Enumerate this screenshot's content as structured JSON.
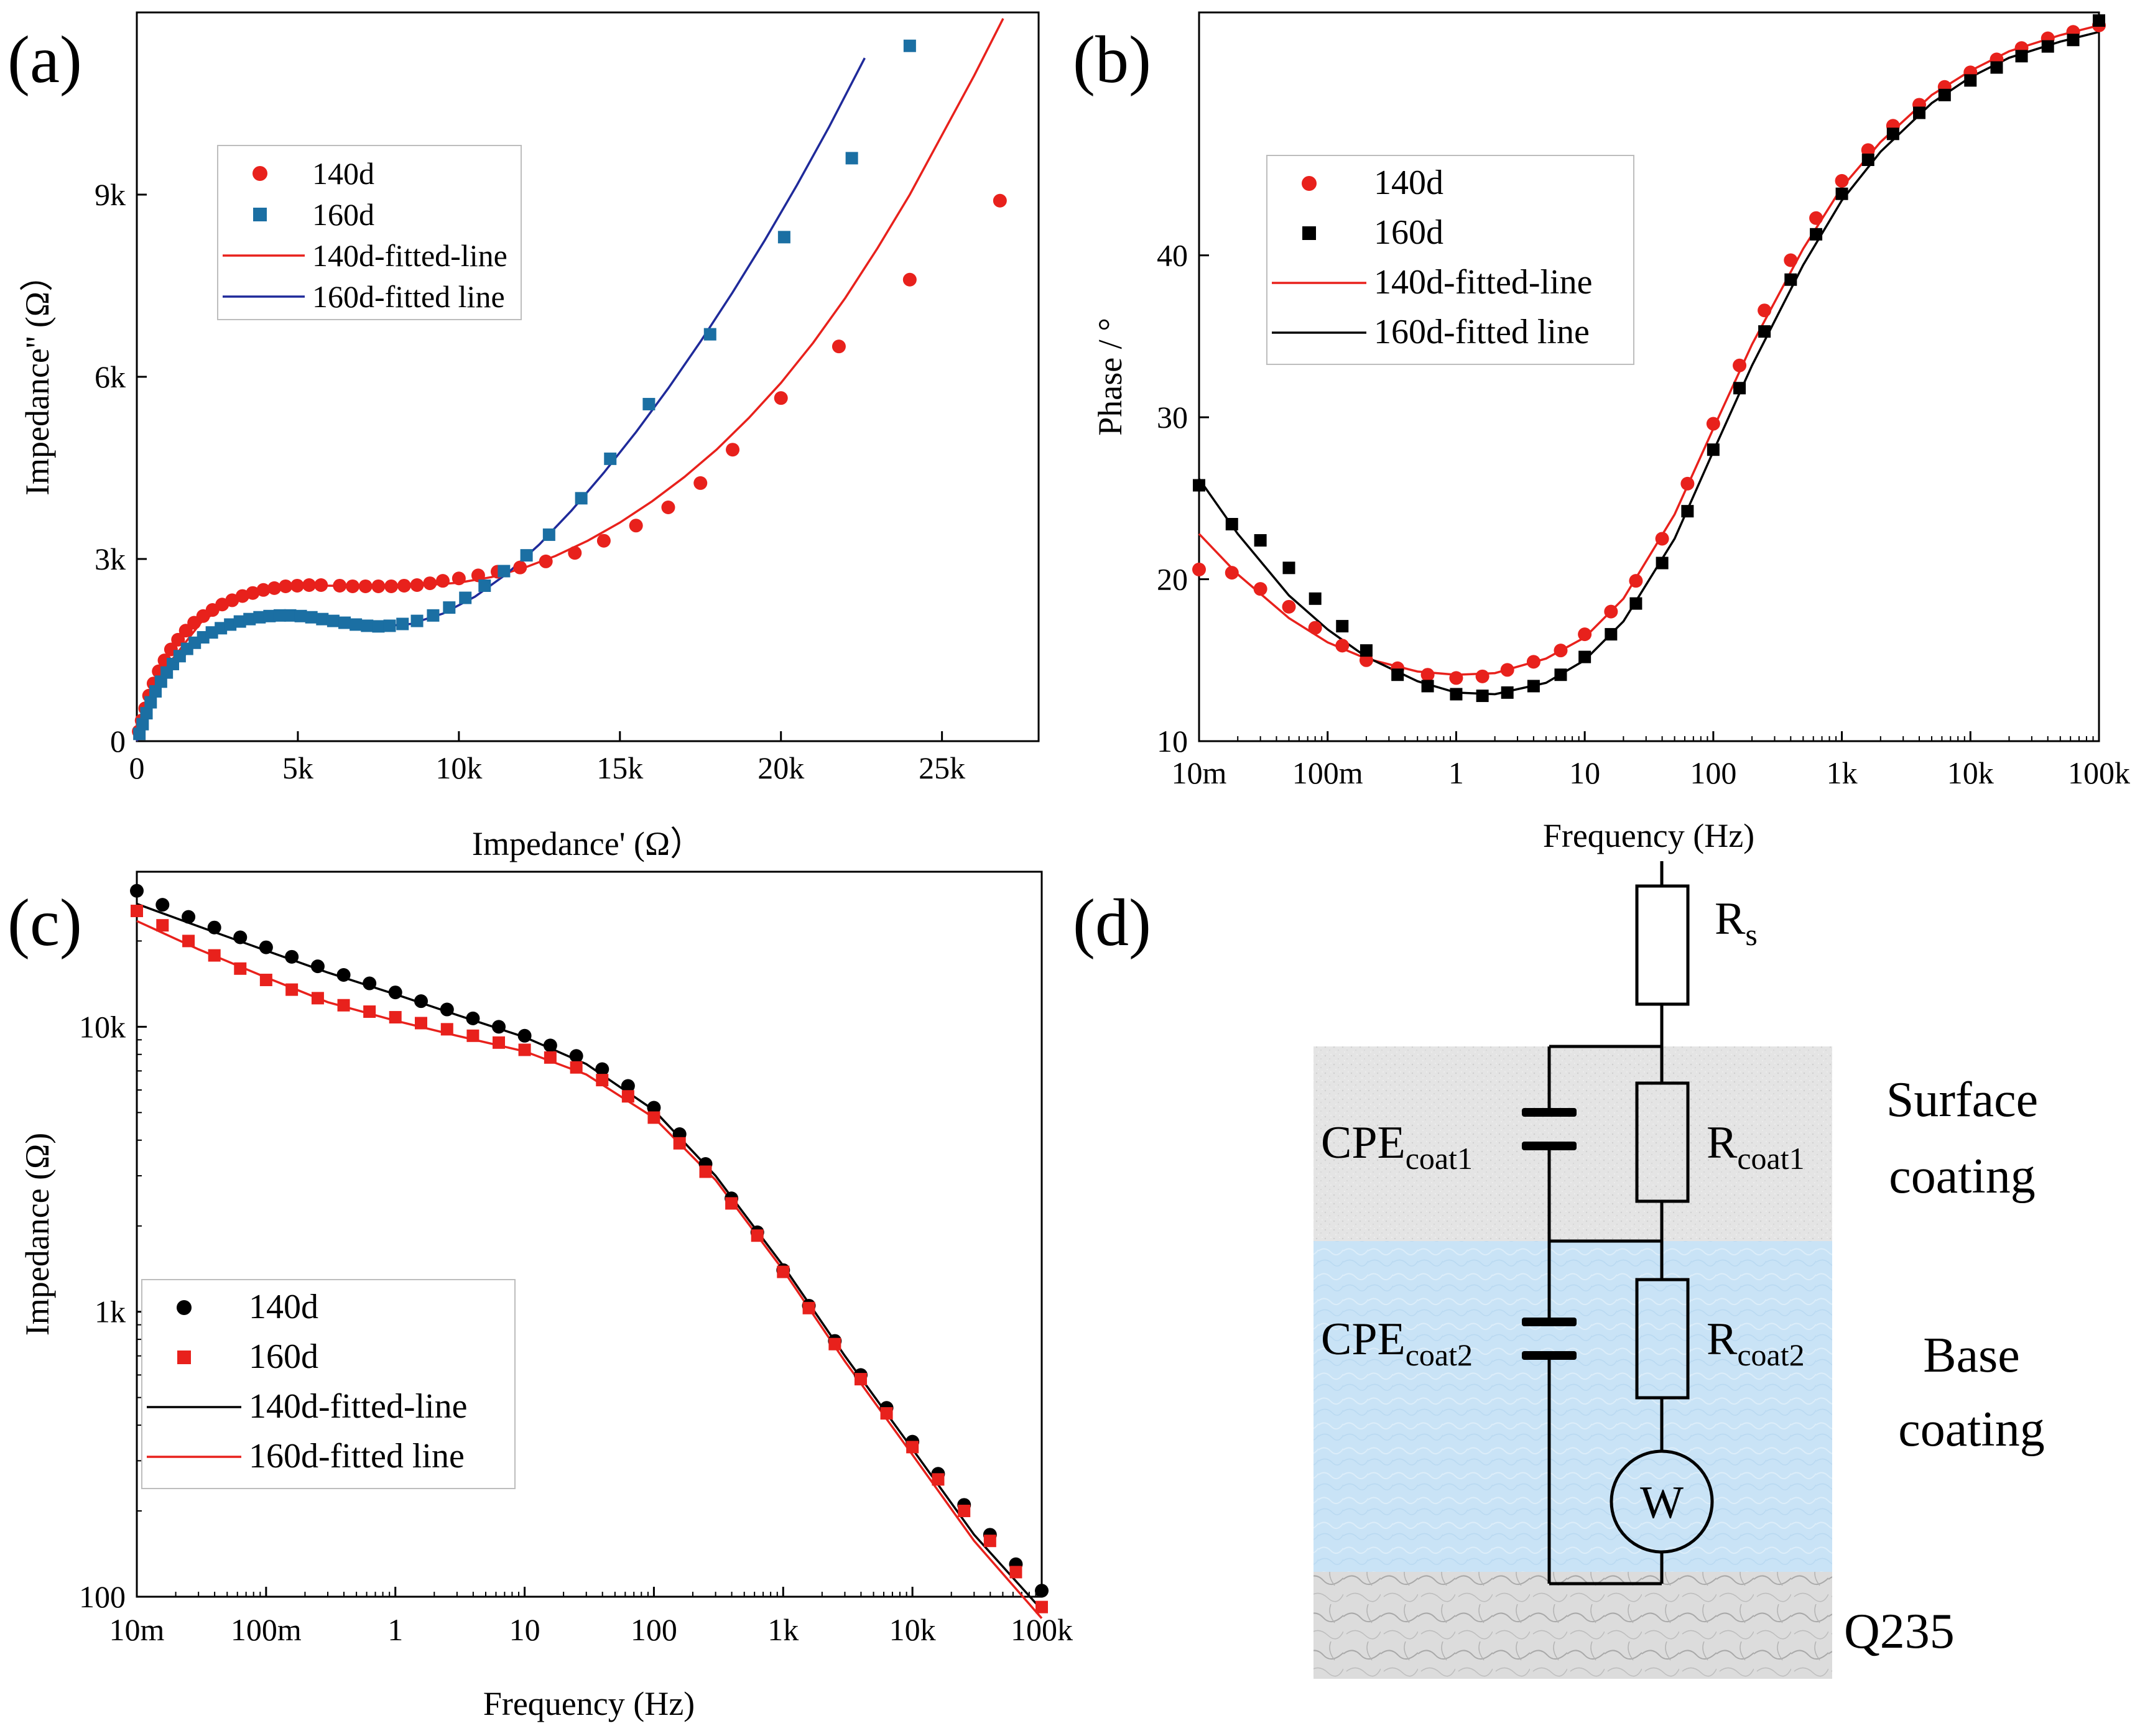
{
  "panels": {
    "a": "(a)",
    "b": "(b)",
    "c": "(c)",
    "d": "(d)"
  },
  "colors": {
    "red": "#e8211c",
    "teal": "#1b6fa3",
    "navy": "#1f2a9a",
    "black": "#000000"
  },
  "chart_data": [
    {
      "id": "a",
      "type": "scatter",
      "title": "",
      "xlabel": "Impedance' (Ω）",
      "ylabel": "Impedance'' (Ω）",
      "xlim": [
        0,
        28000
      ],
      "ylim": [
        0,
        12000
      ],
      "xticks": [
        0,
        5000,
        10000,
        15000,
        20000,
        25000
      ],
      "xtick_labels": [
        "0",
        "5k",
        "10k",
        "15k",
        "20k",
        "25k"
      ],
      "yticks": [
        0,
        3000,
        6000,
        9000
      ],
      "ytick_labels": [
        "0",
        "3k",
        "6k",
        "9k"
      ],
      "legend_position": "upper-left",
      "legend": [
        "140d",
        "160d",
        "140d-fitted-line",
        "160d-fitted line"
      ],
      "series": [
        {
          "name": "140d",
          "marker": "circle",
          "color": "#e8211c",
          "x": [
            60,
            150,
            260,
            380,
            520,
            680,
            860,
            1060,
            1280,
            1520,
            1780,
            2060,
            2350,
            2650,
            2960,
            3280,
            3600,
            3930,
            4270,
            4620,
            4980,
            5350,
            5720,
            6300,
            6700,
            7100,
            7500,
            7900,
            8300,
            8700,
            9100,
            9500,
            10000,
            10600,
            11200,
            11900,
            12700,
            13600,
            14500,
            15500,
            16500,
            17500,
            18500,
            20000,
            21800,
            24000,
            26800
          ],
          "y": [
            160,
            340,
            540,
            750,
            950,
            1150,
            1330,
            1510,
            1670,
            1820,
            1950,
            2060,
            2160,
            2250,
            2320,
            2390,
            2440,
            2490,
            2520,
            2550,
            2560,
            2570,
            2570,
            2560,
            2550,
            2550,
            2550,
            2550,
            2560,
            2570,
            2600,
            2640,
            2680,
            2730,
            2790,
            2860,
            2960,
            3100,
            3300,
            3550,
            3850,
            4250,
            4800,
            5650,
            6500,
            7600,
            8900
          ]
        },
        {
          "name": "160d",
          "marker": "square",
          "color": "#1b6fa3",
          "x": [
            80,
            180,
            300,
            430,
            580,
            750,
            930,
            1120,
            1330,
            1560,
            1800,
            2060,
            2330,
            2610,
            2900,
            3200,
            3500,
            3810,
            4120,
            4440,
            4760,
            5090,
            5420,
            5760,
            6100,
            6450,
            6800,
            7150,
            7500,
            7850,
            8250,
            8700,
            9200,
            9700,
            10200,
            10800,
            11400,
            12100,
            12800,
            13800,
            14700,
            15900,
            17800,
            20100,
            22200,
            24000
          ],
          "y": [
            120,
            280,
            460,
            640,
            820,
            980,
            1130,
            1270,
            1400,
            1520,
            1620,
            1710,
            1790,
            1860,
            1920,
            1970,
            2010,
            2040,
            2060,
            2070,
            2070,
            2060,
            2040,
            2010,
            1980,
            1950,
            1920,
            1900,
            1890,
            1900,
            1930,
            1980,
            2070,
            2200,
            2360,
            2560,
            2800,
            3060,
            3400,
            4000,
            4650,
            5550,
            6700,
            8300,
            9600,
            11450
          ]
        }
      ],
      "fits": [
        {
          "name": "140d-fitted-line",
          "color": "#e8211c",
          "x": [
            0,
            400,
            1000,
            2000,
            3000,
            4000,
            5000,
            6000,
            7000,
            8000,
            9000,
            10000,
            11000,
            12000,
            13000,
            14000,
            15000,
            16000,
            17000,
            18000,
            19000,
            20000,
            21000,
            22000,
            23000,
            24000,
            25000,
            26000,
            26900
          ],
          "y": [
            0,
            620,
            1280,
            1960,
            2330,
            2500,
            2560,
            2560,
            2550,
            2550,
            2570,
            2610,
            2700,
            2850,
            3050,
            3300,
            3600,
            3950,
            4350,
            4800,
            5320,
            5900,
            6560,
            7300,
            8120,
            9000,
            9980,
            10960,
            11900
          ]
        },
        {
          "name": "160d-fitted line",
          "color": "#1f2a9a",
          "x": [
            0,
            400,
            1000,
            2000,
            3000,
            4000,
            5000,
            6000,
            7000,
            7600,
            8500,
            9500,
            10500,
            11500,
            12500,
            13500,
            14500,
            15500,
            16500,
            17500,
            18500,
            19500,
            20500,
            21500,
            22600
          ],
          "y": [
            0,
            560,
            1150,
            1700,
            1980,
            2080,
            2070,
            1990,
            1910,
            1890,
            1930,
            2100,
            2380,
            2760,
            3240,
            3800,
            4420,
            5090,
            5810,
            6580,
            7390,
            8250,
            9160,
            10120,
            11250
          ]
        }
      ]
    },
    {
      "id": "b",
      "type": "scatter",
      "title": "",
      "xlabel": "Frequency (Hz)",
      "ylabel": "Phase / °",
      "xscale": "log",
      "xlim": [
        0.01,
        100000
      ],
      "ylim": [
        10,
        55
      ],
      "xticks": [
        0.01,
        0.1,
        1,
        10,
        100,
        1000,
        10000,
        100000
      ],
      "xtick_labels": [
        "10m",
        "100m",
        "1",
        "10",
        "100",
        "1k",
        "10k",
        "100k"
      ],
      "yticks": [
        10,
        20,
        30,
        40
      ],
      "ytick_labels": [
        "10",
        "20",
        "30",
        "40"
      ],
      "legend_position": "upper-left",
      "legend": [
        "140d",
        "160d",
        "140d-fitted-line",
        "160d-fitted line"
      ],
      "series": [
        {
          "name": "140d",
          "marker": "circle",
          "color": "#e8211c",
          "x": [
            0.01,
            0.018,
            0.03,
            0.05,
            0.08,
            0.13,
            0.2,
            0.35,
            0.6,
            1,
            1.6,
            2.5,
            4,
            6.5,
            10,
            16,
            25,
            40,
            63,
            100,
            160,
            250,
            400,
            630,
            1000,
            1600,
            2500,
            4000,
            6300,
            10000,
            16000,
            25000,
            40000,
            63000,
            100000
          ],
          "y": [
            20.6,
            20.4,
            19.4,
            18.3,
            17.0,
            15.9,
            15.0,
            14.5,
            14.1,
            13.9,
            14.0,
            14.4,
            14.9,
            15.6,
            16.6,
            18.0,
            19.9,
            22.5,
            25.9,
            29.6,
            33.2,
            36.6,
            39.7,
            42.3,
            44.6,
            46.5,
            48.0,
            49.3,
            50.4,
            51.3,
            52.1,
            52.8,
            53.4,
            53.8,
            54.2
          ]
        },
        {
          "name": "160d",
          "marker": "square",
          "color": "#000000",
          "x": [
            0.01,
            0.018,
            0.03,
            0.05,
            0.08,
            0.13,
            0.2,
            0.35,
            0.6,
            1,
            1.6,
            2.5,
            4,
            6.5,
            10,
            16,
            25,
            40,
            63,
            100,
            160,
            250,
            400,
            630,
            1000,
            1600,
            2500,
            4000,
            6300,
            10000,
            16000,
            25000,
            40000,
            63000,
            100000
          ],
          "y": [
            25.8,
            23.4,
            22.4,
            20.7,
            18.8,
            17.1,
            15.6,
            14.1,
            13.4,
            12.9,
            12.8,
            13.0,
            13.4,
            14.1,
            15.2,
            16.6,
            18.5,
            21.0,
            24.2,
            28.0,
            31.8,
            35.3,
            38.5,
            41.3,
            43.8,
            45.9,
            47.5,
            48.8,
            49.9,
            50.8,
            51.6,
            52.3,
            52.9,
            53.3,
            54.5
          ]
        }
      ],
      "fits": [
        {
          "name": "140d-fitted-line",
          "color": "#e8211c",
          "x": [
            0.01,
            0.02,
            0.05,
            0.1,
            0.2,
            0.5,
            1,
            2,
            5,
            10,
            20,
            50,
            100,
            200,
            500,
            1000,
            2000,
            5000,
            10000,
            20000,
            50000,
            100000
          ],
          "y": [
            22.8,
            20.3,
            17.6,
            16.1,
            15.1,
            14.3,
            14.1,
            14.2,
            15.1,
            16.4,
            18.8,
            24.0,
            29.3,
            34.5,
            40.4,
            44.2,
            47.0,
            49.9,
            51.4,
            52.6,
            53.6,
            54.2
          ]
        },
        {
          "name": "160d-fitted line",
          "color": "#000000",
          "x": [
            0.01,
            0.02,
            0.05,
            0.1,
            0.2,
            0.5,
            1,
            2,
            5,
            10,
            20,
            50,
            100,
            200,
            500,
            1000,
            2000,
            5000,
            10000,
            20000,
            50000,
            100000
          ],
          "y": [
            26.2,
            22.8,
            19.0,
            16.9,
            15.2,
            13.7,
            13.0,
            12.9,
            13.6,
            15.0,
            17.4,
            22.5,
            27.9,
            33.2,
            39.4,
            43.4,
            46.4,
            49.4,
            51.0,
            52.2,
            53.2,
            53.8
          ]
        }
      ]
    },
    {
      "id": "c",
      "type": "scatter",
      "title": "",
      "xlabel": "Frequency (Hz)",
      "ylabel": "Impedance (Ω)",
      "xscale": "log",
      "yscale": "log",
      "xlim": [
        0.01,
        100000
      ],
      "ylim": [
        100,
        35000
      ],
      "xticks": [
        0.01,
        0.1,
        1,
        10,
        100,
        1000,
        10000,
        100000
      ],
      "xtick_labels": [
        "10m",
        "100m",
        "1",
        "10",
        "100",
        "1k",
        "10k",
        "100k"
      ],
      "yticks": [
        100,
        1000,
        10000
      ],
      "ytick_labels": [
        "100",
        "1k",
        "10k"
      ],
      "legend_position": "lower-left",
      "legend": [
        "140d",
        "160d",
        "140d-fitted-line",
        "160d-fitted line"
      ],
      "series": [
        {
          "name": "140d",
          "marker": "circle",
          "color": "#000000",
          "x": [
            0.01,
            0.0158,
            0.0251,
            0.0398,
            0.0631,
            0.1,
            0.158,
            0.251,
            0.398,
            0.631,
            1,
            1.58,
            2.51,
            3.98,
            6.31,
            10,
            15.8,
            25.1,
            39.8,
            63.1,
            100,
            158,
            251,
            398,
            631,
            1000,
            1580,
            2510,
            3980,
            6310,
            10000,
            15800,
            25100,
            39800,
            63100,
            100000
          ],
          "y": [
            30000,
            26800,
            24300,
            22300,
            20600,
            19000,
            17600,
            16300,
            15200,
            14200,
            13200,
            12300,
            11500,
            10700,
            10000,
            9300,
            8600,
            7900,
            7100,
            6200,
            5200,
            4200,
            3300,
            2500,
            1900,
            1400,
            1050,
            790,
            600,
            460,
            350,
            270,
            210,
            165,
            130,
            105
          ]
        },
        {
          "name": "160d",
          "marker": "square",
          "color": "#e8211c",
          "x": [
            0.01,
            0.0158,
            0.0251,
            0.0398,
            0.0631,
            0.1,
            0.158,
            0.251,
            0.398,
            0.631,
            1,
            1.58,
            2.51,
            3.98,
            6.31,
            10,
            15.8,
            25.1,
            39.8,
            63.1,
            100,
            158,
            251,
            398,
            631,
            1000,
            1580,
            2510,
            3980,
            6310,
            10000,
            15800,
            25100,
            39800,
            63100,
            100000
          ],
          "y": [
            25500,
            22700,
            20000,
            17800,
            16000,
            14600,
            13500,
            12600,
            11900,
            11300,
            10800,
            10300,
            9800,
            9300,
            8800,
            8300,
            7800,
            7200,
            6500,
            5700,
            4800,
            3900,
            3100,
            2400,
            1850,
            1380,
            1030,
            770,
            580,
            440,
            335,
            258,
            200,
            157,
            122,
            92
          ]
        }
      ],
      "fits": [
        {
          "name": "140d-fitted-line",
          "color": "#000000",
          "x": [
            0.01,
            0.03,
            0.1,
            0.3,
            1,
            3,
            10,
            30,
            100,
            300,
            1000,
            3000,
            10000,
            30000,
            100000
          ],
          "y": [
            27000,
            22500,
            18500,
            15500,
            13000,
            11000,
            9200,
            7400,
            5100,
            3000,
            1450,
            700,
            330,
            165,
            90
          ]
        },
        {
          "name": "160d-fitted line",
          "color": "#e8211c",
          "x": [
            0.01,
            0.03,
            0.1,
            0.3,
            1,
            3,
            10,
            30,
            100,
            300,
            1000,
            3000,
            10000,
            30000,
            100000
          ],
          "y": [
            23500,
            18700,
            14900,
            12200,
            10500,
            9300,
            8200,
            6800,
            4800,
            2900,
            1400,
            670,
            315,
            157,
            84
          ]
        }
      ]
    }
  ],
  "circuit": {
    "rs_main": "R",
    "rs_sub": "s",
    "cpe1_main": "CPE",
    "cpe1_sub": "coat1",
    "r1_main": "R",
    "r1_sub": "coat1",
    "cpe2_main": "CPE",
    "cpe2_sub": "coat2",
    "r2_main": "R",
    "r2_sub": "coat2",
    "warburg": "W",
    "layer_surface_line1": "Surface",
    "layer_surface_line2": "coating",
    "layer_base_line1": "Base",
    "layer_base_line2": "coating",
    "layer_substrate": "Q235"
  }
}
